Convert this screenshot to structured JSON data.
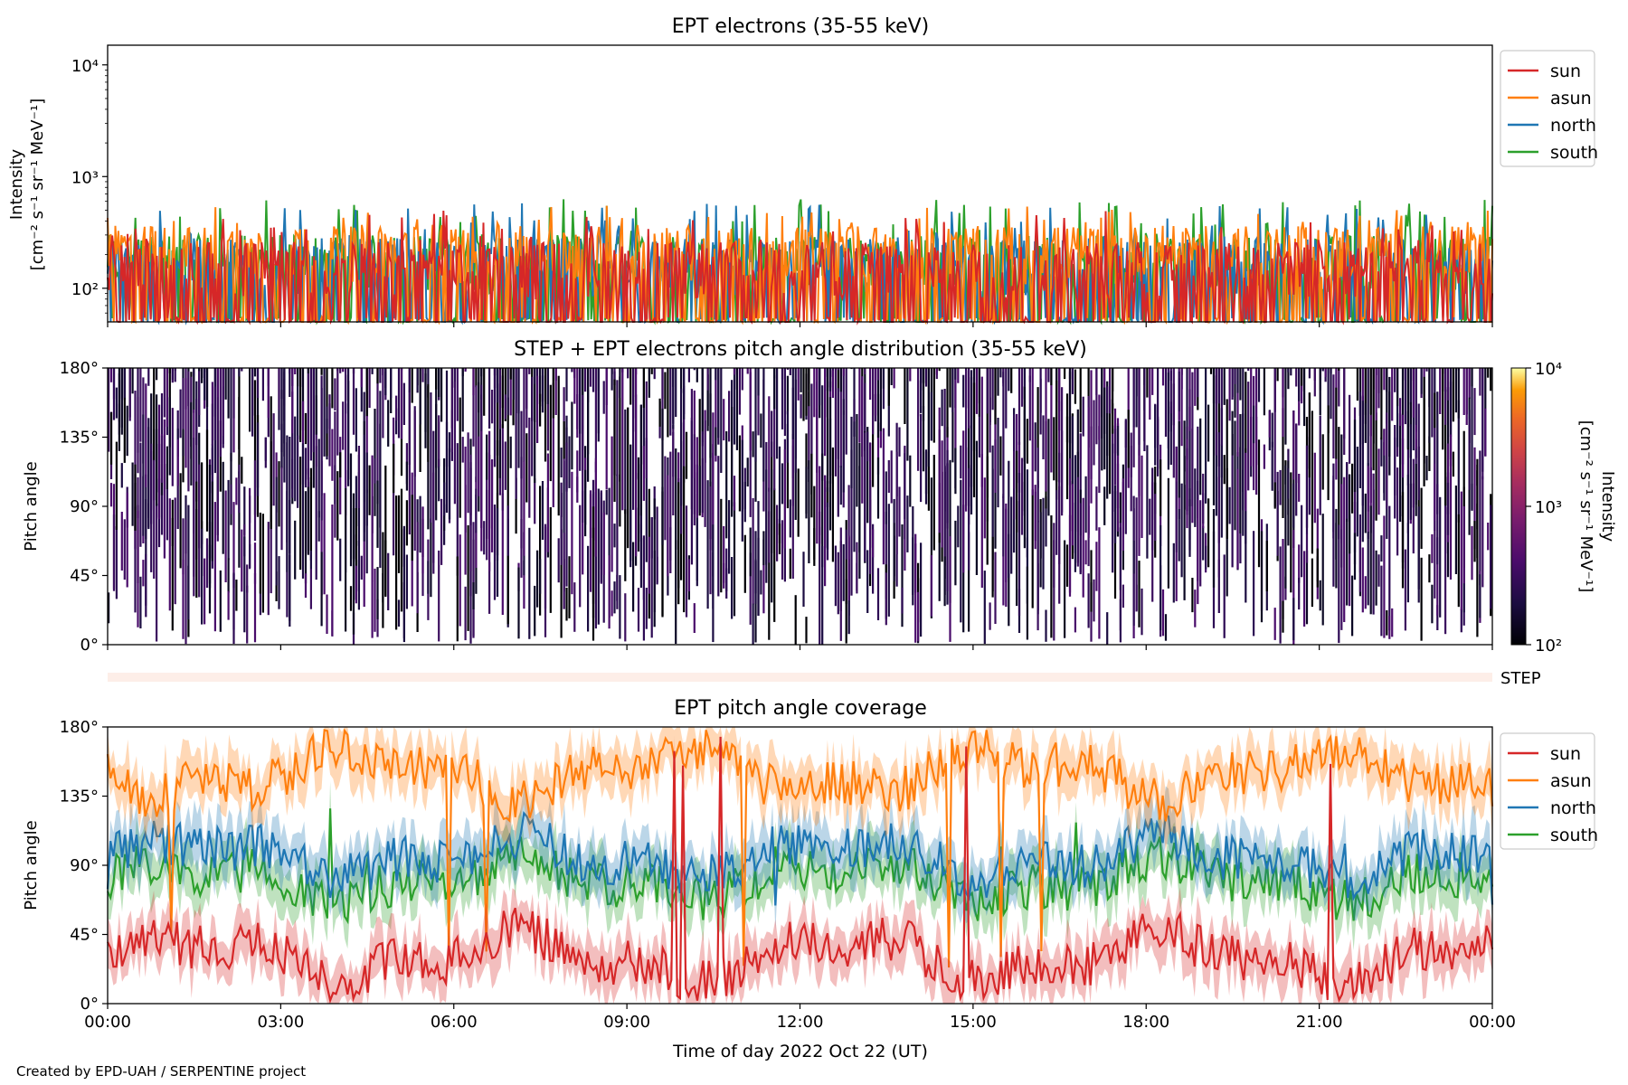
{
  "footer": "Created by EPD-UAH / SERPENTINE project",
  "colors": {
    "sun": "#d62728",
    "asun": "#ff7f0e",
    "north": "#1f77b4",
    "south": "#2ca02c"
  },
  "chart_data": [
    {
      "type": "line",
      "title": "EPT electrons (35-55 keV)",
      "ylabel": "Intensity",
      "ylabel_units": "[cm⁻² s⁻¹ sr⁻¹ MeV⁻¹]",
      "yscale": "log",
      "ylim": [
        50,
        15000
      ],
      "yticks": [
        {
          "v": 100,
          "label": "10²"
        },
        {
          "v": 1000,
          "label": "10³"
        },
        {
          "v": 10000,
          "label": "10⁴"
        }
      ],
      "legend": "outside-right",
      "series": [
        {
          "name": "sun",
          "color": "#d62728",
          "typical": 130,
          "peak": 500
        },
        {
          "name": "asun",
          "color": "#ff7f0e",
          "typical": 180,
          "peak": 550
        },
        {
          "name": "north",
          "color": "#1f77b4",
          "typical": 140,
          "peak": 580
        },
        {
          "name": "south",
          "color": "#2ca02c",
          "typical": 150,
          "peak": 640
        }
      ]
    },
    {
      "type": "heatmap",
      "title": "STEP + EPT electrons pitch angle distribution (35-55 keV)",
      "ylabel": "Pitch angle",
      "ylim": [
        0,
        180
      ],
      "yticks": [
        "0°",
        "45°",
        "90°",
        "135°",
        "180°"
      ],
      "colorbar": {
        "label": "Intensity",
        "units": "[cm⁻² s⁻¹ sr⁻¹ MeV⁻¹]",
        "scale": "log",
        "range": [
          100,
          10000
        ],
        "ticks": [
          "10²",
          "10³",
          "10⁴"
        ],
        "colormap": "inferno"
      }
    },
    {
      "type": "strip",
      "label": "STEP"
    },
    {
      "type": "line",
      "title": "EPT pitch angle coverage",
      "ylabel": "Pitch angle",
      "ylim": [
        0,
        180
      ],
      "yticks": [
        "0°",
        "45°",
        "90°",
        "135°",
        "180°"
      ],
      "legend": "outside-right",
      "series": [
        {
          "name": "sun",
          "color": "#d62728",
          "mean": 30
        },
        {
          "name": "asun",
          "color": "#ff7f0e",
          "mean": 150
        },
        {
          "name": "north",
          "color": "#1f77b4",
          "mean": 95
        },
        {
          "name": "south",
          "color": "#2ca02c",
          "mean": 80
        }
      ]
    }
  ],
  "x_axis": {
    "xlabel": "Time of day 2022 Oct 22 (UT)",
    "range_hours": [
      0,
      24
    ],
    "ticks": [
      "00:00",
      "03:00",
      "06:00",
      "09:00",
      "12:00",
      "15:00",
      "18:00",
      "21:00",
      "00:00"
    ]
  }
}
